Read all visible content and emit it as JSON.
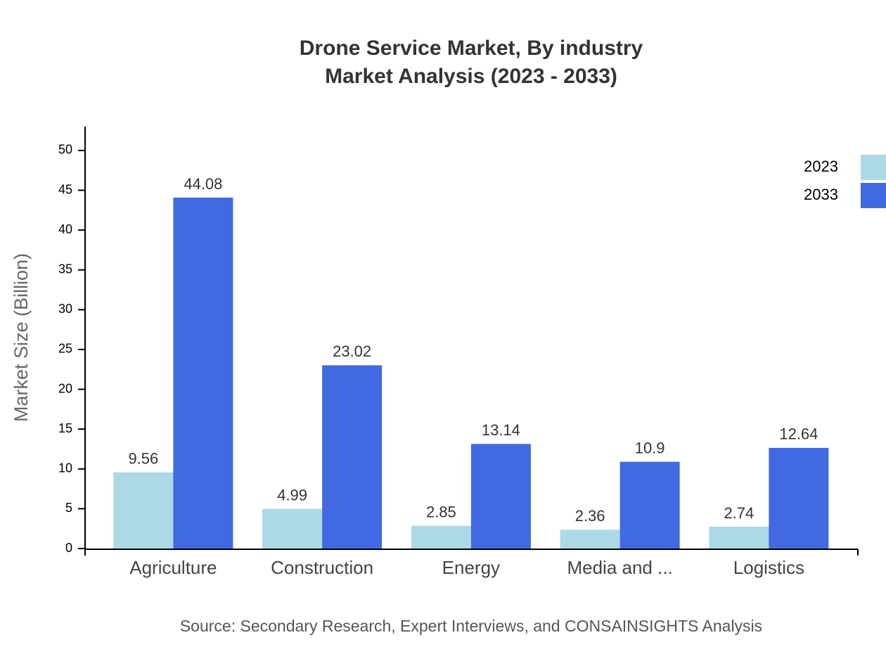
{
  "chart_data": {
    "type": "bar",
    "title": "Drone Service Market, By industry",
    "subtitle": "Market Analysis (2023 - 2033)",
    "y_label": "Market Size (Billion)",
    "source": "Source: Secondary Research, Expert Interviews, and CONSAINSIGHTS Analysis",
    "categories": [
      "Agriculture",
      "Construction",
      "Energy",
      "Media and ...",
      "Logistics"
    ],
    "series": [
      {
        "name": "2023",
        "color": "#add8e6",
        "values": [
          9.56,
          4.99,
          2.85,
          2.36,
          2.74
        ]
      },
      {
        "name": "2033",
        "color": "#4169e1",
        "values": [
          44.08,
          23.02,
          13.14,
          10.9,
          12.64
        ]
      }
    ],
    "ylim": [
      0,
      53
    ],
    "yticks": [
      0,
      5,
      10,
      15,
      20,
      25,
      30,
      35,
      40,
      45,
      50
    ],
    "grid": false,
    "legend": "top-right"
  }
}
